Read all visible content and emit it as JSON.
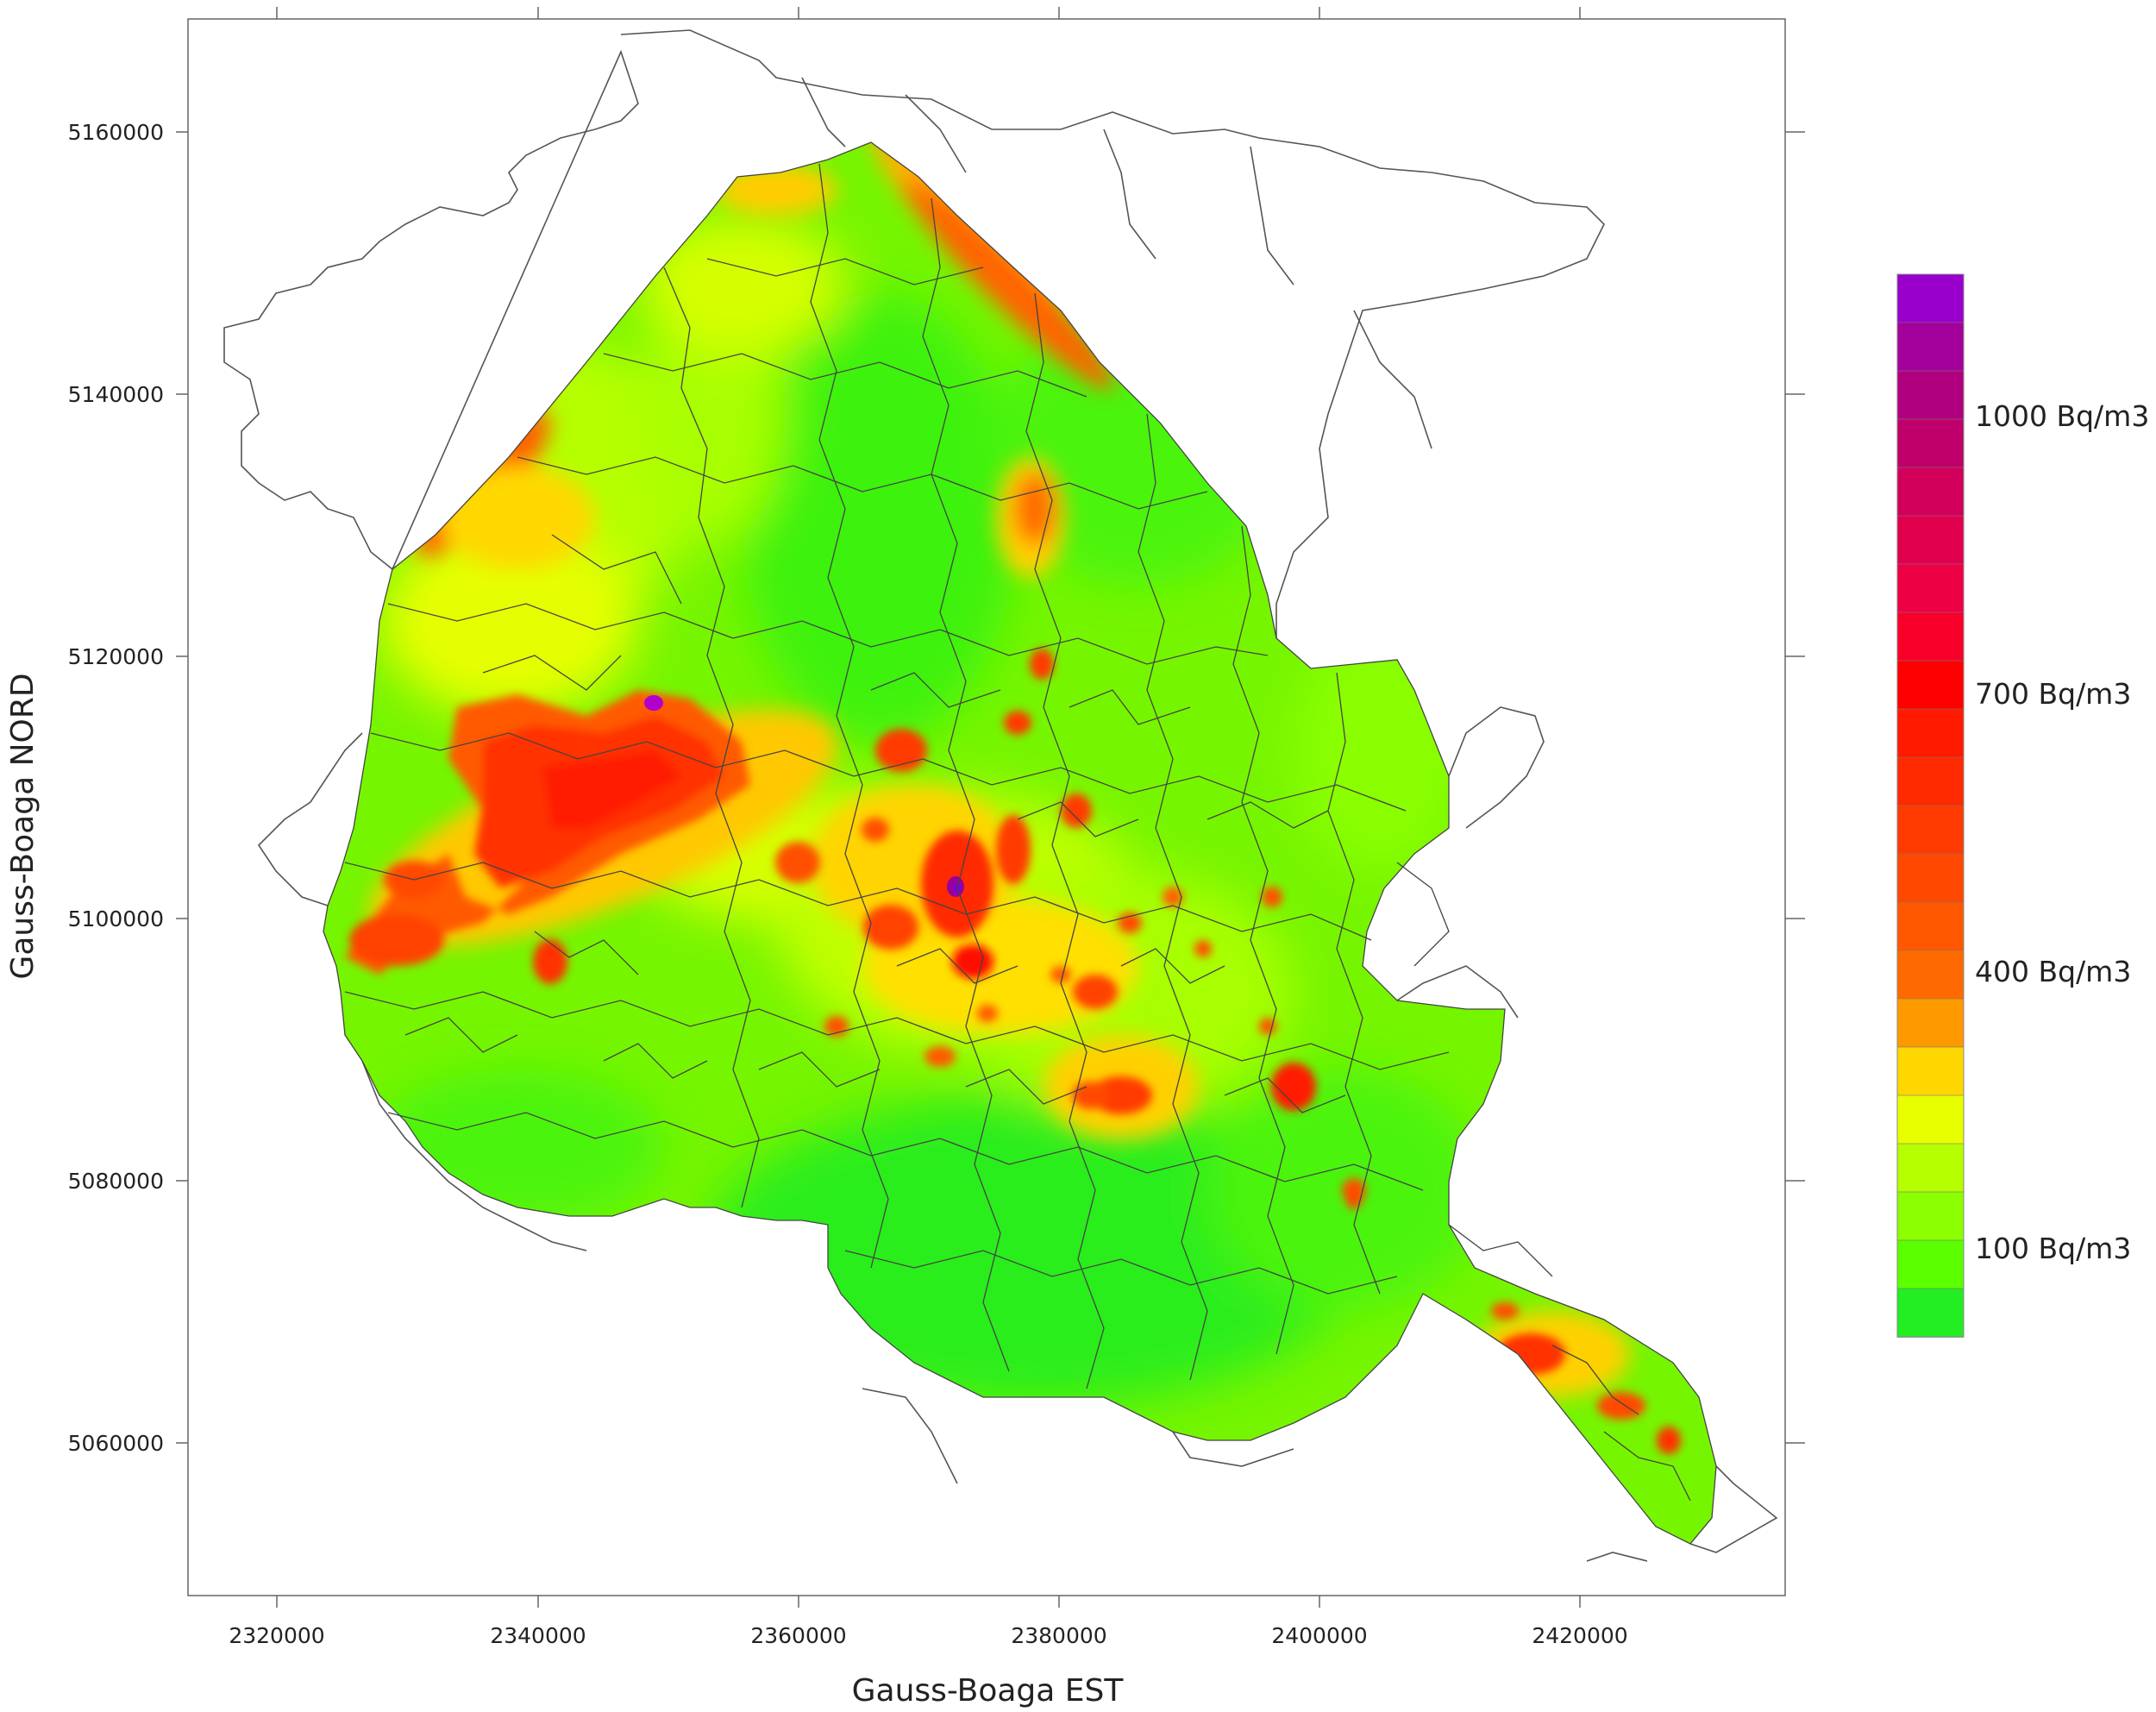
{
  "map": {
    "x_axis": {
      "title": "Gauss-Boaga EST",
      "ticks": [
        "2320000",
        "2340000",
        "2360000",
        "2380000",
        "2400000",
        "2420000"
      ]
    },
    "y_axis": {
      "title": "Gauss-Boaga NORD",
      "ticks": [
        "5160000",
        "5140000",
        "5120000",
        "5100000",
        "5080000",
        "5060000"
      ]
    },
    "legend": {
      "labels": [
        "1000 Bq/m3",
        "700 Bq/m3",
        "400 Bq/m3",
        "100 Bq/m3"
      ],
      "colors": [
        "#9a00cc",
        "#a3009c",
        "#b1007f",
        "#c0006a",
        "#d2005a",
        "#e0004e",
        "#ee0044",
        "#f8002a",
        "#ff0000",
        "#ff1a00",
        "#ff2a00",
        "#ff3a00",
        "#ff4800",
        "#ff5800",
        "#ff6a00",
        "#ff9900",
        "#ffd700",
        "#e8ff00",
        "#b6ff00",
        "#8cff00",
        "#5bff00",
        "#22ee22"
      ]
    }
  }
}
